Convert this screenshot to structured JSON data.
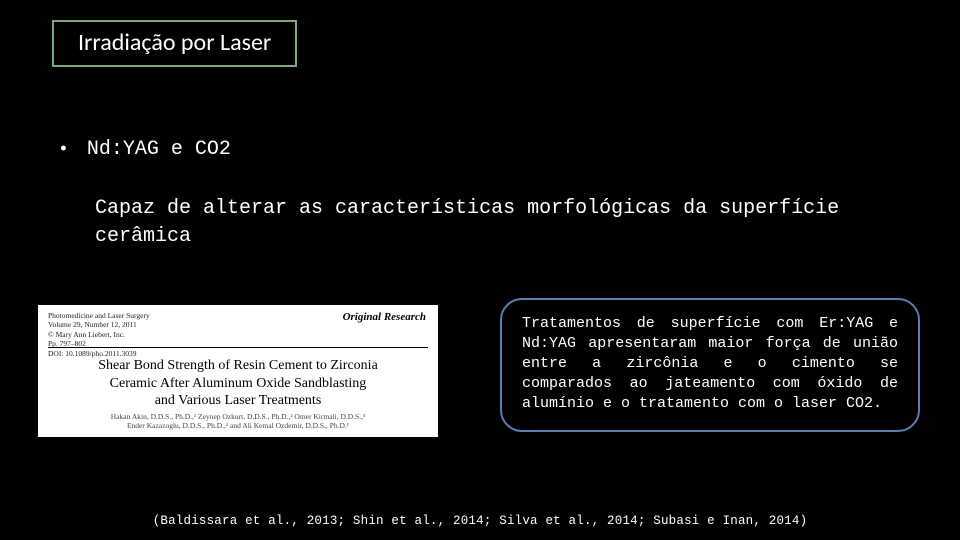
{
  "title": "Irradiação por Laser",
  "bullet": {
    "marker": "•",
    "text": "Nd:YAG e CO2"
  },
  "body": "Capaz de alterar as características morfológicas da superfície cerâmica",
  "paper": {
    "meta_line1": "Photomedicine and Laser Surgery",
    "meta_line2": "Volume 29, Number 12, 2011",
    "meta_line3": "© Mary Ann Liebert, Inc.",
    "meta_line4": "Pp. 797–802",
    "meta_line5": "DOI: 10.1089/pho.2011.3039",
    "category": "Original Research",
    "title_line1": "Shear Bond Strength of Resin Cement to Zirconia",
    "title_line2": "Ceramic After Aluminum Oxide Sandblasting",
    "title_line3": "and Various Laser Treatments",
    "authors_line1": "Hakan Akin, D.D.S., Ph.D.,¹ Zeynep Ozkurt, D.D.S., Ph.D.,² Omer Kirmali, D.D.S.,³",
    "authors_line2": "Ender Kazazoglu, D.D.S., Ph.D.,² and Ali Kemal Ozdemir, D.D.S., Ph.D.¹"
  },
  "callout": "Tratamentos de superfície com Er:YAG e Nd:YAG apresentaram maior força de união entre a zircônia e o cimento se comparados ao jateamento com óxido de alumínio e o tratamento com o laser CO2.",
  "citation": "(Baldissara et al., 2013; Shin et al., 2014; Silva et al., 2014; Subasi e Inan, 2014)"
}
